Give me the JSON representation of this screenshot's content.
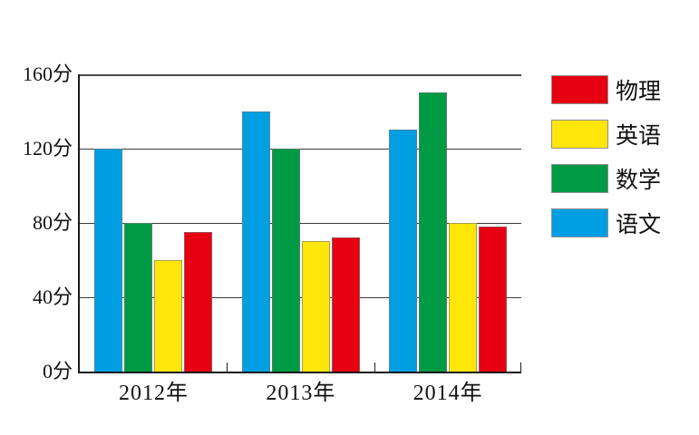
{
  "chart_data": {
    "type": "bar",
    "title": "",
    "categories": [
      "2012年",
      "2013年",
      "2014年"
    ],
    "series": [
      {
        "name": "语文",
        "color": "#009fe3",
        "values": [
          120,
          140,
          130
        ]
      },
      {
        "name": "数学",
        "color": "#009944",
        "values": [
          80,
          120,
          150
        ]
      },
      {
        "name": "英语",
        "color": "#ffe60a",
        "values": [
          60,
          70,
          80
        ]
      },
      {
        "name": "物理",
        "color": "#e60012",
        "values": [
          75,
          72,
          78
        ]
      }
    ],
    "y_axis": {
      "max": 160,
      "unit": "分",
      "ticks": [
        {
          "value": 0,
          "label": "0分"
        },
        {
          "value": 40,
          "label": "40分"
        },
        {
          "value": 80,
          "label": "80分"
        },
        {
          "value": 120,
          "label": "120分"
        },
        {
          "value": 160,
          "label": "160分"
        }
      ]
    },
    "grid": true,
    "legend": {
      "position": "right",
      "entries": [
        {
          "label": "物理",
          "color": "#e60012"
        },
        {
          "label": "英语",
          "color": "#ffe60a"
        },
        {
          "label": "数学",
          "color": "#009944"
        },
        {
          "label": "语文",
          "color": "#009fe3"
        }
      ]
    }
  }
}
